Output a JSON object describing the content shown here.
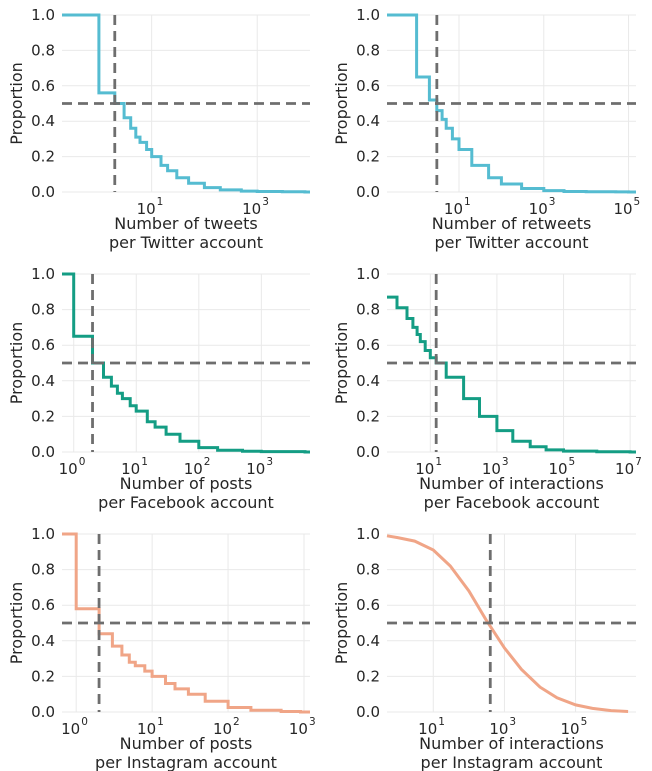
{
  "chart_data": [
    {
      "type": "line",
      "panel": "a",
      "step": true,
      "xscale": "log",
      "xlim": [
        0.2,
        10000
      ],
      "ylim": [
        0,
        1
      ],
      "ylabel": "Proportion",
      "xlabel_lines": [
        "Number of tweets",
        "per Twitter account"
      ],
      "color": "#55bcd1",
      "yticks": [
        {
          "value": 0.0,
          "label": "0.0"
        },
        {
          "value": 0.2,
          "label": "0.2"
        },
        {
          "value": 0.4,
          "label": "0.4"
        },
        {
          "value": 0.6,
          "label": "0.6"
        },
        {
          "value": 0.8,
          "label": "0.8"
        },
        {
          "value": 1.0,
          "label": "1.0"
        }
      ],
      "xticks": [
        {
          "value": 10,
          "base": "10",
          "exp": "1"
        },
        {
          "value": 1000,
          "base": "10",
          "exp": "3"
        }
      ],
      "median_x": 2,
      "median_y": 0.5,
      "x": [
        0.2,
        1,
        2,
        3,
        4,
        5,
        6,
        8,
        10,
        15,
        20,
        30,
        50,
        100,
        200,
        500,
        1000,
        3000,
        8000
      ],
      "y": [
        1.0,
        0.56,
        0.5,
        0.42,
        0.36,
        0.31,
        0.28,
        0.24,
        0.2,
        0.15,
        0.12,
        0.08,
        0.05,
        0.025,
        0.012,
        0.005,
        0.003,
        0.001,
        0.0
      ]
    },
    {
      "type": "line",
      "panel": "b",
      "step": true,
      "xscale": "log",
      "xlim": [
        0.2,
        150000
      ],
      "ylim": [
        0,
        1
      ],
      "ylabel": "Proportion",
      "xlabel_lines": [
        "Number of retweets",
        "per Twitter account"
      ],
      "color": "#55bcd1",
      "yticks": [
        {
          "value": 0.0,
          "label": "0.0"
        },
        {
          "value": 0.2,
          "label": "0.2"
        },
        {
          "value": 0.4,
          "label": "0.4"
        },
        {
          "value": 0.6,
          "label": "0.6"
        },
        {
          "value": 0.8,
          "label": "0.8"
        },
        {
          "value": 1.0,
          "label": "1.0"
        }
      ],
      "xticks": [
        {
          "value": 10,
          "base": "10",
          "exp": "1"
        },
        {
          "value": 1000,
          "base": "10",
          "exp": "3"
        },
        {
          "value": 100000,
          "base": "10",
          "exp": "5"
        }
      ],
      "median_x": 3,
      "median_y": 0.5,
      "x": [
        0.2,
        1,
        2,
        3,
        4,
        5,
        7,
        10,
        20,
        50,
        100,
        300,
        1000,
        3000,
        10000,
        50000,
        100000
      ],
      "y": [
        1.0,
        0.65,
        0.52,
        0.46,
        0.41,
        0.36,
        0.3,
        0.24,
        0.15,
        0.08,
        0.045,
        0.02,
        0.008,
        0.003,
        0.001,
        0.0003,
        0.0
      ]
    },
    {
      "type": "line",
      "panel": "c",
      "step": true,
      "xscale": "log",
      "xlim": [
        0.65,
        6000
      ],
      "ylim": [
        0,
        1
      ],
      "ylabel": "Proportion",
      "xlabel_lines": [
        "Number of posts",
        "per Facebook account"
      ],
      "color": "#149d84",
      "yticks": [
        {
          "value": 0.0,
          "label": "0.0"
        },
        {
          "value": 0.2,
          "label": "0.2"
        },
        {
          "value": 0.4,
          "label": "0.4"
        },
        {
          "value": 0.6,
          "label": "0.6"
        },
        {
          "value": 0.8,
          "label": "0.8"
        },
        {
          "value": 1.0,
          "label": "1.0"
        }
      ],
      "xticks": [
        {
          "value": 1,
          "base": "10",
          "exp": "0"
        },
        {
          "value": 10,
          "base": "10",
          "exp": "1"
        },
        {
          "value": 100,
          "base": "10",
          "exp": "2"
        },
        {
          "value": 1000,
          "base": "10",
          "exp": "3"
        }
      ],
      "median_x": 2,
      "median_y": 0.5,
      "x": [
        0.65,
        1,
        2,
        3,
        4,
        5,
        6,
        8,
        10,
        15,
        20,
        30,
        50,
        100,
        200,
        500,
        1000,
        5000
      ],
      "y": [
        1.0,
        0.65,
        0.5,
        0.42,
        0.37,
        0.33,
        0.3,
        0.26,
        0.23,
        0.17,
        0.14,
        0.1,
        0.06,
        0.025,
        0.01,
        0.004,
        0.002,
        0.0
      ]
    },
    {
      "type": "line",
      "panel": "d",
      "step": true,
      "xscale": "log",
      "xlim": [
        0.5,
        15000000
      ],
      "ylim": [
        0,
        1
      ],
      "ylabel": "Proportion",
      "xlabel_lines": [
        "Number of interactions",
        "per Facebook account"
      ],
      "color": "#149d84",
      "yticks": [
        {
          "value": 0.0,
          "label": "0.0"
        },
        {
          "value": 0.2,
          "label": "0.2"
        },
        {
          "value": 0.4,
          "label": "0.4"
        },
        {
          "value": 0.6,
          "label": "0.6"
        },
        {
          "value": 0.8,
          "label": "0.8"
        },
        {
          "value": 1.0,
          "label": "1.0"
        }
      ],
      "xticks": [
        {
          "value": 10,
          "base": "10",
          "exp": "1"
        },
        {
          "value": 1000,
          "base": "10",
          "exp": "3"
        },
        {
          "value": 100000,
          "base": "10",
          "exp": "5"
        },
        {
          "value": 10000000,
          "base": "10",
          "exp": "7"
        }
      ],
      "median_x": 15,
      "median_y": 0.5,
      "x": [
        0.5,
        1,
        2,
        3,
        4,
        5,
        7,
        10,
        15,
        30,
        100,
        300,
        1000,
        3000,
        10000,
        30000,
        100000,
        1000000,
        10000000
      ],
      "y": [
        0.87,
        0.81,
        0.75,
        0.7,
        0.66,
        0.62,
        0.57,
        0.53,
        0.5,
        0.42,
        0.3,
        0.2,
        0.12,
        0.06,
        0.03,
        0.012,
        0.005,
        0.001,
        0.0
      ]
    },
    {
      "type": "line",
      "panel": "e",
      "step": true,
      "xscale": "log",
      "xlim": [
        0.65,
        1200
      ],
      "ylim": [
        0,
        1
      ],
      "ylabel": "Proportion",
      "xlabel_lines": [
        "Number of posts",
        "per Instagram account"
      ],
      "color": "#f0a587",
      "yticks": [
        {
          "value": 0.0,
          "label": "0.0"
        },
        {
          "value": 0.2,
          "label": "0.2"
        },
        {
          "value": 0.4,
          "label": "0.4"
        },
        {
          "value": 0.6,
          "label": "0.6"
        },
        {
          "value": 0.8,
          "label": "0.8"
        },
        {
          "value": 1.0,
          "label": "1.0"
        }
      ],
      "xticks": [
        {
          "value": 1,
          "base": "10",
          "exp": "0"
        },
        {
          "value": 10,
          "base": "10",
          "exp": "1"
        },
        {
          "value": 100,
          "base": "10",
          "exp": "2"
        },
        {
          "value": 1000,
          "base": "10",
          "exp": "3"
        }
      ],
      "median_x": 2,
      "median_y": 0.5,
      "x": [
        0.65,
        1,
        2,
        3,
        4,
        5,
        6,
        8,
        10,
        15,
        20,
        30,
        50,
        100,
        200,
        500,
        900
      ],
      "y": [
        1.0,
        0.58,
        0.44,
        0.37,
        0.32,
        0.28,
        0.26,
        0.23,
        0.2,
        0.16,
        0.13,
        0.1,
        0.06,
        0.025,
        0.01,
        0.003,
        0.0
      ]
    },
    {
      "type": "line",
      "panel": "f",
      "step": false,
      "xscale": "log",
      "xlim": [
        0.5,
        5000000
      ],
      "ylim": [
        0,
        1
      ],
      "ylabel": "Proportion",
      "xlabel_lines": [
        "Number of interactions",
        "per Instagram account"
      ],
      "color": "#f0a587",
      "yticks": [
        {
          "value": 0.0,
          "label": "0.0"
        },
        {
          "value": 0.2,
          "label": "0.2"
        },
        {
          "value": 0.4,
          "label": "0.4"
        },
        {
          "value": 0.6,
          "label": "0.6"
        },
        {
          "value": 0.8,
          "label": "0.8"
        },
        {
          "value": 1.0,
          "label": "1.0"
        }
      ],
      "xticks": [
        {
          "value": 10,
          "base": "10",
          "exp": "1"
        },
        {
          "value": 1000,
          "base": "10",
          "exp": "3"
        },
        {
          "value": 100000,
          "base": "10",
          "exp": "5"
        }
      ],
      "median_x": 400,
      "median_y": 0.5,
      "x": [
        0.5,
        1,
        3,
        10,
        30,
        100,
        300,
        1000,
        3000,
        10000,
        30000,
        100000,
        300000,
        1000000,
        3000000
      ],
      "y": [
        0.99,
        0.98,
        0.96,
        0.91,
        0.82,
        0.68,
        0.52,
        0.36,
        0.24,
        0.14,
        0.08,
        0.04,
        0.02,
        0.008,
        0.003
      ]
    }
  ]
}
